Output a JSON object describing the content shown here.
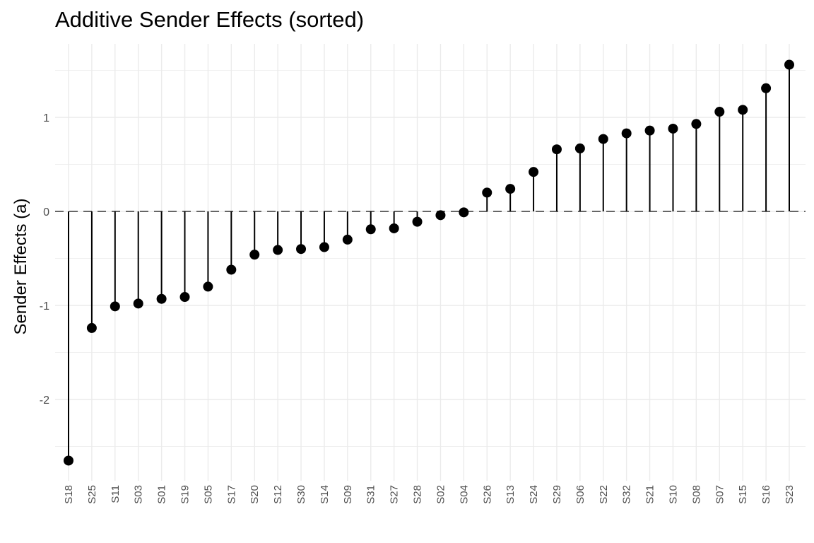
{
  "chart_data": {
    "type": "lollipop",
    "title": "Additive Sender Effects (sorted)",
    "xlabel": "",
    "ylabel": "Sender Effects (a)",
    "ylim": [
      -2.75,
      1.68
    ],
    "yticks": [
      -2,
      -1,
      0,
      1
    ],
    "ytick_labels": [
      "-2",
      "-1",
      "0",
      "1"
    ],
    "reference_line": {
      "y": 0,
      "style": "dashed",
      "color": "#666666"
    },
    "grid": true,
    "legend": "none",
    "colors": {
      "marker": "#000000",
      "stem": "#000000",
      "grid": "#ebebeb",
      "background": "#ffffff"
    },
    "categories": [
      "S18",
      "S25",
      "S11",
      "S03",
      "S01",
      "S19",
      "S05",
      "S17",
      "S20",
      "S12",
      "S30",
      "S14",
      "S09",
      "S31",
      "S27",
      "S28",
      "S02",
      "S04",
      "S26",
      "S13",
      "S24",
      "S29",
      "S06",
      "S22",
      "S32",
      "S21",
      "S10",
      "S08",
      "S07",
      "S15",
      "S16",
      "S23"
    ],
    "values": [
      -2.65,
      -1.24,
      -1.01,
      -0.98,
      -0.93,
      -0.91,
      -0.8,
      -0.62,
      -0.46,
      -0.41,
      -0.4,
      -0.38,
      -0.3,
      -0.19,
      -0.18,
      -0.11,
      -0.04,
      -0.01,
      0.2,
      0.24,
      0.42,
      0.66,
      0.67,
      0.77,
      0.83,
      0.86,
      0.88,
      0.93,
      1.06,
      1.08,
      1.31,
      1.56
    ]
  }
}
